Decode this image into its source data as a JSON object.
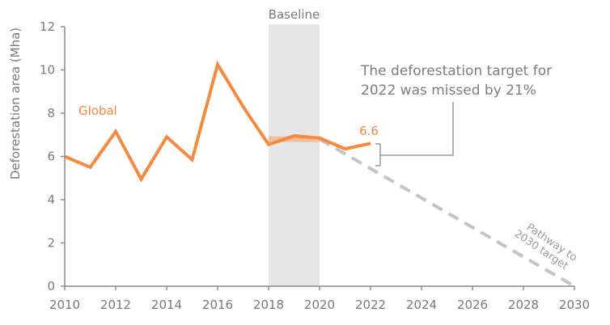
{
  "chart_data": {
    "type": "line",
    "title": "",
    "xlabel": "",
    "ylabel": "Deforestation area (Mha)",
    "ylim": [
      0,
      12
    ],
    "xlim": [
      2010,
      2030
    ],
    "yticks": [
      0,
      2,
      4,
      6,
      8,
      10,
      12
    ],
    "xticks": [
      2010,
      2012,
      2014,
      2016,
      2018,
      2020,
      2022,
      2024,
      2026,
      2028,
      2030
    ],
    "grid": false,
    "series": [
      {
        "name": "Global",
        "color": "#f5893f",
        "x": [
          2010,
          2011,
          2012,
          2013,
          2014,
          2015,
          2016,
          2017,
          2018,
          2019,
          2020,
          2021,
          2022
        ],
        "values": [
          6.0,
          5.5,
          7.15,
          4.95,
          6.9,
          5.85,
          10.25,
          8.3,
          6.55,
          6.95,
          6.85,
          6.35,
          6.6
        ]
      },
      {
        "name": "Pathway to 2030 target",
        "color": "#c9c2c0",
        "style": "dashed",
        "x": [
          2020,
          2030
        ],
        "values": [
          6.8,
          0
        ]
      }
    ],
    "baseline_band": {
      "label": "Baseline",
      "x_start": 2018,
      "x_end": 2020,
      "value": 6.8
    },
    "annotations": [
      {
        "text": "Global",
        "x": 2011,
        "y": 8.0
      },
      {
        "text": "6.6",
        "x": 2022,
        "y": 7.1
      },
      {
        "text": "The deforestation target for 2022 was missed by 21%",
        "x": 2022.5,
        "y": 10
      },
      {
        "text": "Pathway to 2030 target",
        "x": 2029,
        "y": 1.5
      }
    ]
  },
  "labels": {
    "ylabel": "Deforestation area (Mha)",
    "baseline": "Baseline",
    "series_global": "Global",
    "value_2022": "6.6",
    "callout_line1": "The deforestation target for",
    "callout_line2": "2022 was missed by 21%",
    "pathway_line1": "Pathway to",
    "pathway_line2": "2030 target"
  },
  "colors": {
    "series": "#f5893f",
    "pathway": "#c9c2c0",
    "baseline_band": "#e6e6e6",
    "axis": "#8c8c8c",
    "text": "#7a7a7a"
  }
}
